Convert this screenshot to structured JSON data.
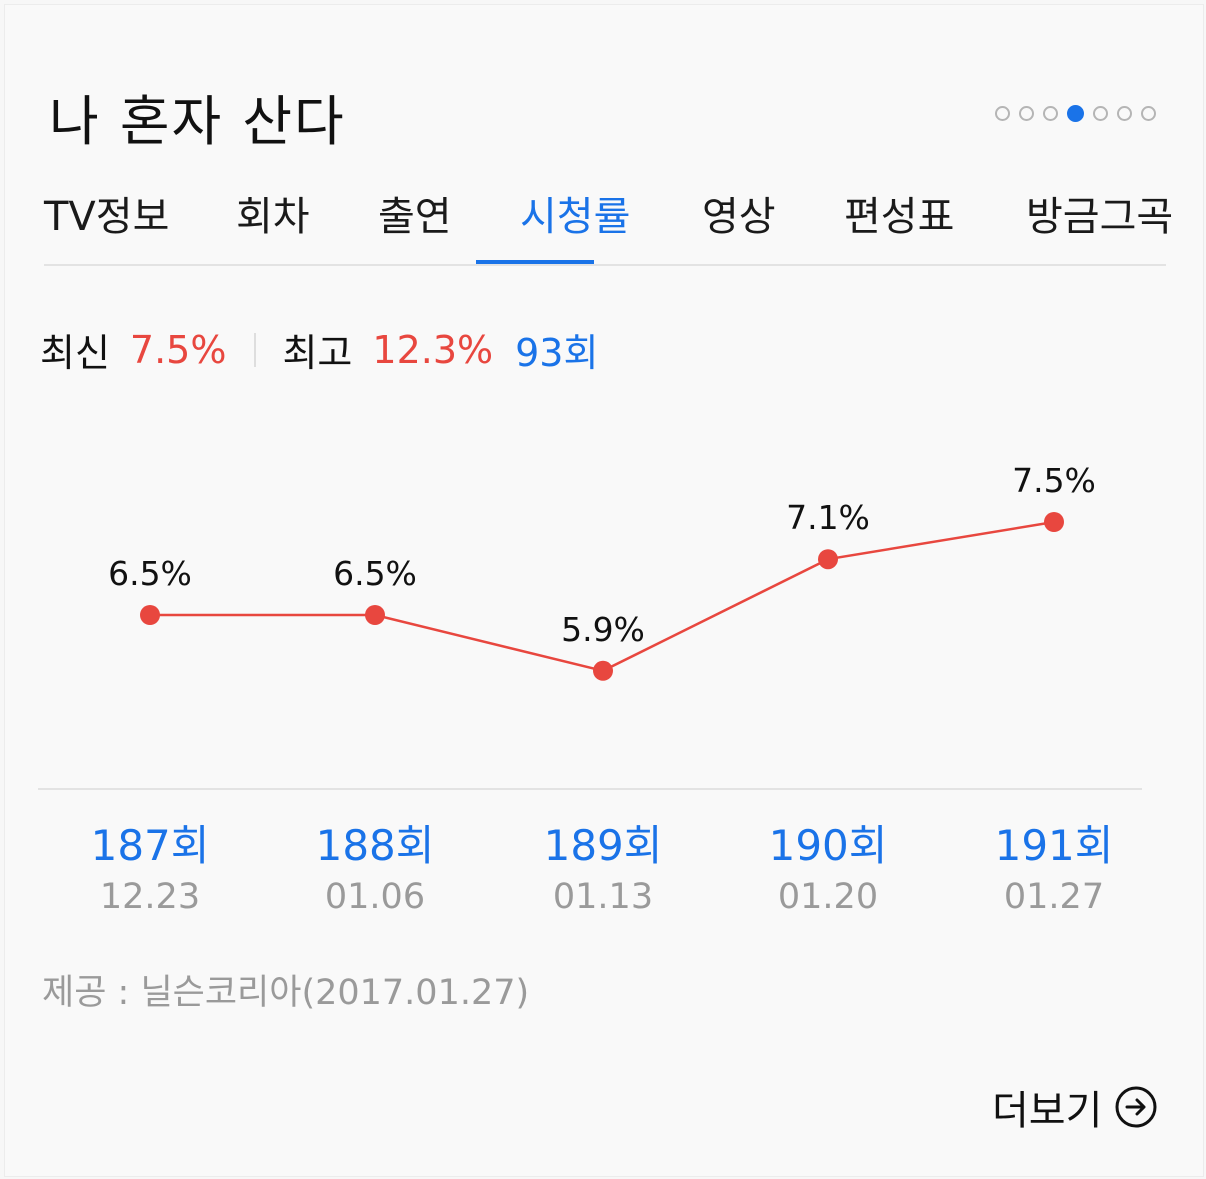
{
  "header": {
    "title": "나 혼자 산다",
    "pager_count": 7,
    "pager_active": 3
  },
  "tabs": [
    "TV정보",
    "회차",
    "출연",
    "시청률",
    "영상",
    "편성표",
    "방금그곡"
  ],
  "active_tab": "시청률",
  "summary": {
    "latest_label": "최신",
    "latest_value": "7.5%",
    "best_label": "최고",
    "best_value": "12.3%",
    "best_episode": "93회"
  },
  "colors": {
    "accent": "#1a73e8",
    "rating": "#e8473f",
    "muted": "#9a9a9a"
  },
  "chart_data": {
    "type": "line",
    "categories": [
      "187회",
      "188회",
      "189회",
      "190회",
      "191회"
    ],
    "dates": [
      "12.23",
      "01.06",
      "01.13",
      "01.20",
      "01.27"
    ],
    "values": [
      6.5,
      6.5,
      5.9,
      7.1,
      7.5
    ],
    "value_labels": [
      "6.5%",
      "6.5%",
      "5.9%",
      "7.1%",
      "7.5%"
    ],
    "grid": false
  },
  "source": "제공 : 닐슨코리아(2017.01.27)",
  "more": {
    "label": "더보기",
    "icon": "arrow-right-circle-icon"
  }
}
